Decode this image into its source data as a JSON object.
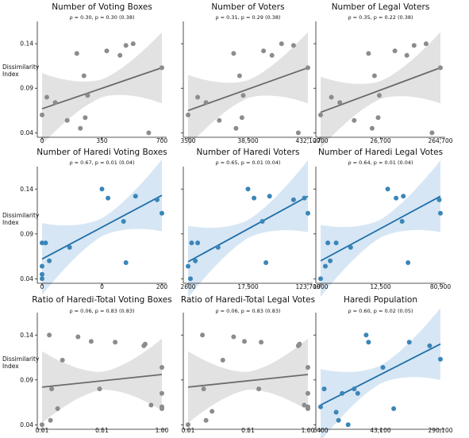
{
  "y_axis_label": [
    "Dissimilarity",
    "Index"
  ],
  "colors": {
    "gray": "#8c8c8c",
    "gray_line": "#6b6b6b",
    "gray_band": "#e2e2e2",
    "blue": "#3a86b8",
    "blue_line": "#1f6ea8",
    "blue_band": "#d6e6f4"
  },
  "chart_data": [
    {
      "type": "scatter",
      "title": "Number of Voting Boxes",
      "subtitle": "ρ = 0.30, p = 0.30 (0.38)",
      "color": "gray",
      "xticks": [
        "0",
        "350",
        "700"
      ],
      "yticks": [
        "0.04",
        "0.09",
        "0.14"
      ],
      "ylim": [
        0.035,
        0.165
      ],
      "x": [
        0.0,
        0.04,
        0.11,
        0.21,
        0.29,
        0.32,
        0.35,
        0.36,
        0.38,
        0.54,
        0.65,
        0.7,
        0.76,
        0.89,
        1.0
      ],
      "y": [
        0.06,
        0.08,
        0.074,
        0.054,
        0.129,
        0.045,
        0.104,
        0.057,
        0.082,
        0.132,
        0.127,
        0.138,
        0.14,
        0.04,
        0.113
      ],
      "fit": [
        0.067,
        0.113
      ]
    },
    {
      "type": "scatter",
      "title": "Number of Voters",
      "subtitle": "ρ = 0.31, p = 0.29 (0.38)",
      "color": "gray",
      "xticks": [
        "3500",
        "38,900",
        "432,100"
      ],
      "yticks": [],
      "ylim": [
        0.035,
        0.165
      ],
      "x": [
        0.0,
        0.08,
        0.15,
        0.26,
        0.38,
        0.4,
        0.43,
        0.45,
        0.46,
        0.63,
        0.7,
        0.78,
        0.88,
        0.92,
        1.0
      ],
      "y": [
        0.06,
        0.08,
        0.074,
        0.054,
        0.129,
        0.045,
        0.104,
        0.057,
        0.082,
        0.132,
        0.127,
        0.14,
        0.138,
        0.04,
        0.113
      ],
      "fit": [
        0.065,
        0.113
      ]
    },
    {
      "type": "scatter",
      "title": "Number of Legal Voters",
      "subtitle": "ρ = 0.35, p = 0.22 (0.38)",
      "color": "gray",
      "xticks": [
        "2700",
        "26,700",
        "264,700"
      ],
      "yticks": [],
      "ylim": [
        0.035,
        0.165
      ],
      "x": [
        0.0,
        0.09,
        0.16,
        0.28,
        0.4,
        0.43,
        0.45,
        0.48,
        0.49,
        0.62,
        0.72,
        0.78,
        0.88,
        0.93,
        1.0
      ],
      "y": [
        0.06,
        0.08,
        0.074,
        0.054,
        0.129,
        0.045,
        0.104,
        0.057,
        0.082,
        0.132,
        0.127,
        0.138,
        0.14,
        0.04,
        0.113
      ],
      "fit": [
        0.063,
        0.113
      ]
    },
    {
      "type": "scatter",
      "title": "Number of Haredi Voting Boxes",
      "subtitle": "ρ = 0.67, p = 0.01 (0.04)",
      "color": "blue",
      "xticks": [
        "0",
        "0",
        "200"
      ],
      "yticks": [
        "0.04",
        "0.09",
        "0.14"
      ],
      "ylim": [
        0.035,
        0.165
      ],
      "x": [
        0.0,
        0.0,
        0.0,
        0.0,
        0.03,
        0.06,
        0.23,
        0.5,
        0.55,
        0.68,
        0.7,
        0.78,
        0.96,
        1.0
      ],
      "y": [
        0.04,
        0.045,
        0.054,
        0.08,
        0.08,
        0.06,
        0.075,
        0.14,
        0.13,
        0.104,
        0.058,
        0.132,
        0.128,
        0.113
      ],
      "fit": [
        0.062,
        0.133
      ]
    },
    {
      "type": "scatter",
      "title": "Number of Haredi Voters",
      "subtitle": "ρ = 0.65, p = 0.01 (0.04)",
      "color": "blue",
      "xticks": [
        "2600",
        "17,900",
        "123,700"
      ],
      "yticks": [],
      "ylim": [
        0.035,
        0.165
      ],
      "x": [
        0.0,
        0.02,
        0.03,
        0.06,
        0.08,
        0.25,
        0.5,
        0.55,
        0.62,
        0.65,
        0.68,
        0.88,
        0.97,
        1.0
      ],
      "y": [
        0.054,
        0.04,
        0.08,
        0.06,
        0.08,
        0.075,
        0.14,
        0.13,
        0.104,
        0.058,
        0.132,
        0.128,
        0.13,
        0.113
      ],
      "fit": [
        0.059,
        0.132
      ]
    },
    {
      "type": "scatter",
      "title": "Number of Haredi Legal Votes",
      "subtitle": "ρ = 0.64, p = 0.01 (0.04)",
      "color": "blue",
      "xticks": [
        "1900",
        "12,500",
        "80,900"
      ],
      "yticks": [],
      "ylim": [
        0.035,
        0.165
      ],
      "x": [
        0.0,
        0.04,
        0.06,
        0.08,
        0.13,
        0.25,
        0.56,
        0.63,
        0.68,
        0.69,
        0.73,
        0.99,
        1.0
      ],
      "y": [
        0.04,
        0.054,
        0.08,
        0.06,
        0.08,
        0.075,
        0.14,
        0.13,
        0.104,
        0.132,
        0.058,
        0.128,
        0.113
      ],
      "fit": [
        0.06,
        0.132
      ]
    },
    {
      "type": "scatter",
      "title": "Ratio of Haredi-Total Voting Boxes",
      "subtitle": "ρ = 0.06, p = 0.83 (0.83)",
      "color": "gray",
      "xticks": [
        "0.01",
        "0.51",
        "1.00"
      ],
      "yticks": [
        "0.04",
        "0.09",
        "0.14"
      ],
      "ylim": [
        0.035,
        0.165
      ],
      "x": [
        0.0,
        0.06,
        0.07,
        0.08,
        0.13,
        0.17,
        0.3,
        0.41,
        0.48,
        0.61,
        0.85,
        0.86,
        0.91,
        1.0,
        1.0,
        1.0,
        1.0
      ],
      "y": [
        0.04,
        0.14,
        0.045,
        0.08,
        0.058,
        0.112,
        0.138,
        0.133,
        0.08,
        0.132,
        0.128,
        0.13,
        0.062,
        0.104,
        0.075,
        0.06,
        0.058
      ],
      "fit": [
        0.082,
        0.096
      ]
    },
    {
      "type": "scatter",
      "title": "Ratio of Haredi-Total Legal Votes",
      "subtitle": "ρ = 0.06, p = 0.83 (0.83)",
      "color": "gray",
      "xticks": [
        "0.01",
        "0.51",
        "1.00"
      ],
      "yticks": [],
      "ylim": [
        0.035,
        0.165
      ],
      "x": [
        0.0,
        0.12,
        0.13,
        0.15,
        0.2,
        0.29,
        0.38,
        0.47,
        0.59,
        0.61,
        0.92,
        0.93,
        0.97,
        1.0,
        1.0,
        1.0,
        1.0
      ],
      "y": [
        0.04,
        0.14,
        0.08,
        0.045,
        0.055,
        0.112,
        0.138,
        0.133,
        0.08,
        0.132,
        0.128,
        0.13,
        0.062,
        0.104,
        0.075,
        0.06,
        0.058
      ],
      "fit": [
        0.082,
        0.096
      ]
    },
    {
      "type": "scatter",
      "title": "Haredi Population",
      "subtitle": "ρ = 0.60, p = 0.02 (0.05)",
      "color": "blue",
      "xticks": [
        "6400",
        "43,100",
        "290,100"
      ],
      "yticks": [],
      "ylim": [
        0.035,
        0.165
      ],
      "x": [
        0.0,
        0.03,
        0.13,
        0.15,
        0.18,
        0.23,
        0.28,
        0.31,
        0.38,
        0.4,
        0.52,
        0.61,
        0.74,
        0.91,
        1.0
      ],
      "y": [
        0.06,
        0.08,
        0.054,
        0.045,
        0.075,
        0.04,
        0.08,
        0.075,
        0.14,
        0.132,
        0.104,
        0.058,
        0.132,
        0.128,
        0.113
      ],
      "fit": [
        0.062,
        0.13
      ]
    }
  ]
}
